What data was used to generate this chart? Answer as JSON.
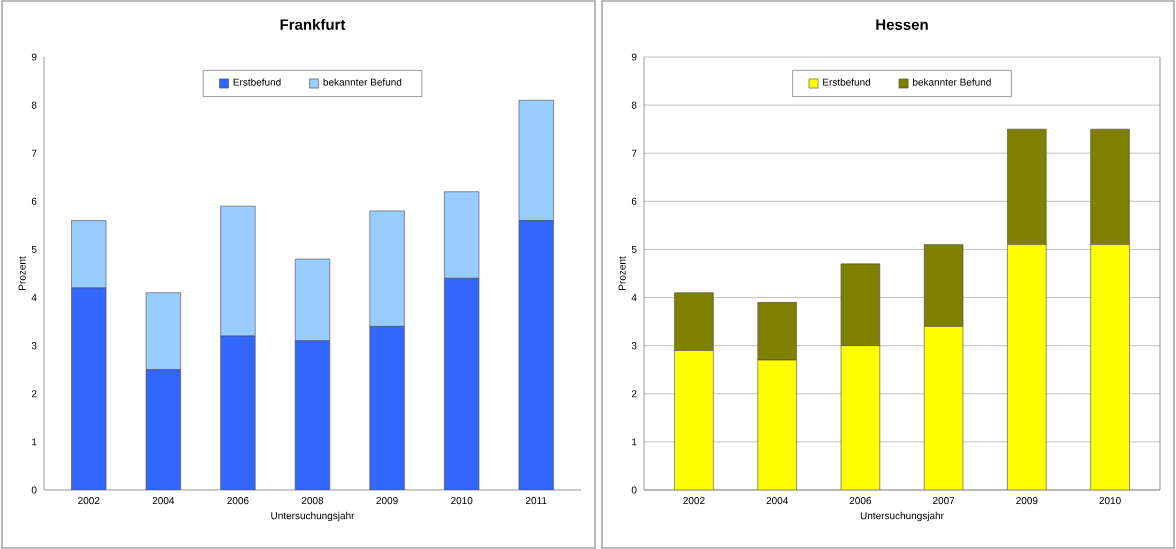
{
  "chart_data": [
    {
      "type": "bar",
      "title": "Frankfurt",
      "xlabel": "Untersuchungsjahr",
      "ylabel": "Prozent",
      "stacked": true,
      "categories": [
        "2002",
        "2004",
        "2006",
        "2008",
        "2009",
        "2010",
        "2011"
      ],
      "series": [
        {
          "name": "Erstbefund",
          "color": "#3366ff",
          "values": [
            4.2,
            2.5,
            3.2,
            3.1,
            3.4,
            4.4,
            5.6
          ]
        },
        {
          "name": "bekannter Befund",
          "color": "#99ccff",
          "values": [
            1.4,
            1.6,
            2.7,
            1.7,
            2.4,
            1.8,
            2.5
          ]
        }
      ],
      "ylim": [
        0,
        9
      ],
      "yticks": [
        0,
        1,
        2,
        3,
        4,
        5,
        6,
        7,
        8,
        9
      ],
      "grid": false,
      "legend": "top"
    },
    {
      "type": "bar",
      "title": "Hessen",
      "xlabel": "Untersuchungsjahr",
      "ylabel": "Prozent",
      "stacked": true,
      "categories": [
        "2002",
        "2004",
        "2006",
        "2007",
        "2009",
        "2010"
      ],
      "series": [
        {
          "name": "Erstbefund",
          "color": "#ffff00",
          "values": [
            2.9,
            2.7,
            3.0,
            3.4,
            5.1,
            5.1
          ]
        },
        {
          "name": "bekannter Befund",
          "color": "#808000",
          "values": [
            1.2,
            1.2,
            1.7,
            1.7,
            2.4,
            2.4
          ]
        }
      ],
      "ylim": [
        0,
        9
      ],
      "yticks": [
        0,
        1,
        2,
        3,
        4,
        5,
        6,
        7,
        8,
        9
      ],
      "grid": "y",
      "legend": "top"
    }
  ]
}
